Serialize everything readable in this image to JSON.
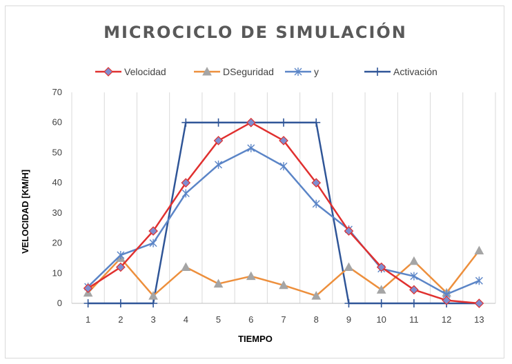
{
  "chart_data": {
    "type": "line",
    "title": "MICROCICLO DE SIMULACIÓN",
    "xlabel": "TIEMPO",
    "ylabel": "VELOCIDAD [KM/H]",
    "categories": [
      "1",
      "2",
      "3",
      "4",
      "5",
      "6",
      "7",
      "8",
      "9",
      "10",
      "11",
      "12",
      "13"
    ],
    "ylim": [
      0,
      70
    ],
    "yticks": [
      "0",
      "10",
      "20",
      "30",
      "40",
      "50",
      "60",
      "70"
    ],
    "grid": "vertical",
    "legend_position": "top",
    "series": [
      {
        "name": "Velocidad",
        "color": "#e0302f",
        "marker": "diamond",
        "marker_color": "#7f8ed0",
        "values": [
          5,
          12,
          24,
          40,
          54,
          60,
          54,
          40,
          24,
          12,
          4.5,
          1,
          0
        ]
      },
      {
        "name": "DSeguridad",
        "color": "#ed8f3c",
        "marker": "triangle",
        "marker_color": "#a5a5a5",
        "values": [
          3.5,
          15,
          2.5,
          12,
          6.5,
          9,
          6,
          2.5,
          12,
          4.5,
          14,
          3.5,
          17.5
        ]
      },
      {
        "name": "y",
        "color": "#5b85c7",
        "marker": "star",
        "marker_color": "#5b85c7",
        "values": [
          5.5,
          16,
          20,
          36.5,
          46,
          51.5,
          45.5,
          33,
          24.5,
          11.5,
          9,
          3,
          7.5
        ]
      },
      {
        "name": "Activación",
        "color": "#2f5597",
        "marker": "plus",
        "marker_color": "#2f5597",
        "values": [
          0,
          0,
          0,
          60,
          60,
          60,
          60,
          60,
          0,
          0,
          0,
          0,
          0
        ]
      }
    ]
  }
}
